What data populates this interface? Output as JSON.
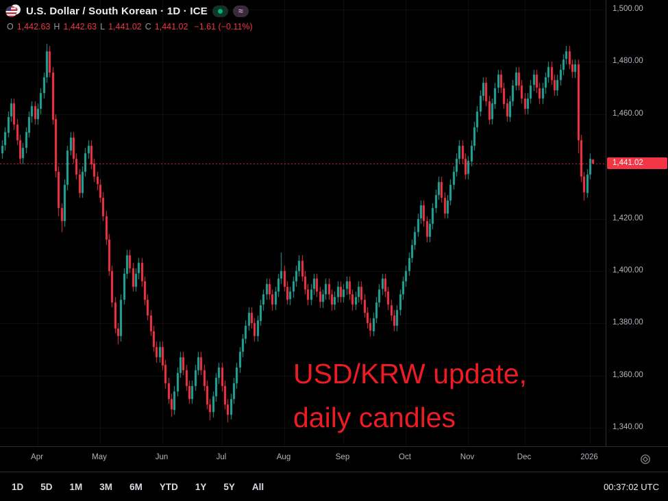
{
  "header": {
    "title": "U.S. Dollar / South Korean · 1D · ICE",
    "ohlc": {
      "o_label": "O",
      "o": "1,442.63",
      "h_label": "H",
      "h": "1,442.63",
      "l_label": "L",
      "l": "1,441.02",
      "c_label": "C",
      "c": "1,441.02",
      "change": "−1.61 (−0.11%)"
    }
  },
  "annotation": {
    "line1": "USD/KRW update,",
    "line2": "daily candles"
  },
  "toolbar": {
    "ranges": [
      "1D",
      "5D",
      "1M",
      "3M",
      "6M",
      "YTD",
      "1Y",
      "5Y",
      "All"
    ],
    "clock": "00:37:02 UTC"
  },
  "chart_data": {
    "type": "candlestick",
    "symbol": "USD/KRW",
    "timeframe": "1D",
    "exchange": "ICE",
    "current_price": 1441.02,
    "current_price_label": "1,441.02",
    "colors": {
      "up": "#26a69a",
      "down": "#f23645",
      "current_line": "#f23645",
      "grid": "rgba(134,137,147,0.12)"
    },
    "price_axis": {
      "min": 1340,
      "max": 1500,
      "tick_step": 20,
      "ticks": [
        {
          "value": 1500,
          "label": "1,500.00"
        },
        {
          "value": 1480,
          "label": "1,480.00"
        },
        {
          "value": 1460,
          "label": "1,460.00"
        },
        {
          "value": 1420,
          "label": "1,420.00"
        },
        {
          "value": 1400,
          "label": "1,400.00"
        },
        {
          "value": 1380,
          "label": "1,380.00"
        },
        {
          "value": 1360,
          "label": "1,360.00"
        },
        {
          "value": 1340,
          "label": "1,340.00"
        }
      ]
    },
    "x_ticks": [
      {
        "label": "Apr",
        "index": 12
      },
      {
        "label": "May",
        "index": 33
      },
      {
        "label": "Jun",
        "index": 54
      },
      {
        "label": "Jul",
        "index": 74
      },
      {
        "label": "Aug",
        "index": 95
      },
      {
        "label": "Sep",
        "index": 115
      },
      {
        "label": "Oct",
        "index": 136
      },
      {
        "label": "Nov",
        "index": 157
      },
      {
        "label": "Dec",
        "index": 176
      },
      {
        "label": "2026",
        "index": 198
      }
    ],
    "candles": [
      [
        1445,
        1450,
        1443,
        1448
      ],
      [
        1448,
        1455,
        1446,
        1453
      ],
      [
        1453,
        1461,
        1451,
        1459
      ],
      [
        1459,
        1466,
        1457,
        1464
      ],
      [
        1464,
        1466,
        1454,
        1456
      ],
      [
        1456,
        1458,
        1448,
        1450
      ],
      [
        1450,
        1452,
        1441,
        1443
      ],
      [
        1443,
        1449,
        1441,
        1447
      ],
      [
        1447,
        1455,
        1445,
        1453
      ],
      [
        1453,
        1461,
        1451,
        1459
      ],
      [
        1459,
        1465,
        1457,
        1463
      ],
      [
        1463,
        1465,
        1456,
        1458
      ],
      [
        1458,
        1464,
        1456,
        1462
      ],
      [
        1462,
        1470,
        1460,
        1468
      ],
      [
        1468,
        1476,
        1466,
        1474
      ],
      [
        1474,
        1487,
        1472,
        1484
      ],
      [
        1484,
        1486,
        1474,
        1476
      ],
      [
        1476,
        1478,
        1456,
        1458
      ],
      [
        1458,
        1460,
        1436,
        1438
      ],
      [
        1438,
        1440,
        1421,
        1424
      ],
      [
        1424,
        1426,
        1415,
        1419
      ],
      [
        1419,
        1435,
        1417,
        1433
      ],
      [
        1433,
        1448,
        1431,
        1446
      ],
      [
        1446,
        1453,
        1444,
        1451
      ],
      [
        1451,
        1453,
        1441,
        1443
      ],
      [
        1443,
        1445,
        1435,
        1437
      ],
      [
        1437,
        1439,
        1428,
        1430
      ],
      [
        1430,
        1440,
        1428,
        1438
      ],
      [
        1438,
        1447,
        1436,
        1445
      ],
      [
        1445,
        1450,
        1443,
        1448
      ],
      [
        1448,
        1450,
        1439,
        1441
      ],
      [
        1441,
        1443,
        1434,
        1436
      ],
      [
        1436,
        1438,
        1431,
        1433
      ],
      [
        1433,
        1435,
        1426,
        1428
      ],
      [
        1428,
        1430,
        1419,
        1421
      ],
      [
        1421,
        1423,
        1410,
        1412
      ],
      [
        1412,
        1414,
        1398,
        1400
      ],
      [
        1400,
        1402,
        1386,
        1388
      ],
      [
        1388,
        1390,
        1376,
        1378
      ],
      [
        1378,
        1380,
        1372,
        1375
      ],
      [
        1375,
        1391,
        1373,
        1389
      ],
      [
        1389,
        1401,
        1387,
        1399
      ],
      [
        1399,
        1408,
        1397,
        1406
      ],
      [
        1406,
        1408,
        1399,
        1401
      ],
      [
        1401,
        1403,
        1392,
        1394
      ],
      [
        1394,
        1401,
        1392,
        1399
      ],
      [
        1399,
        1405,
        1397,
        1403
      ],
      [
        1403,
        1405,
        1394,
        1396
      ],
      [
        1396,
        1398,
        1387,
        1389
      ],
      [
        1389,
        1391,
        1381,
        1383
      ],
      [
        1383,
        1385,
        1375,
        1377
      ],
      [
        1377,
        1379,
        1369,
        1371
      ],
      [
        1371,
        1373,
        1365,
        1367
      ],
      [
        1367,
        1373,
        1365,
        1371
      ],
      [
        1371,
        1373,
        1362,
        1364
      ],
      [
        1364,
        1366,
        1355,
        1357
      ],
      [
        1357,
        1359,
        1349,
        1351
      ],
      [
        1351,
        1353,
        1344,
        1347
      ],
      [
        1347,
        1356,
        1345,
        1354
      ],
      [
        1354,
        1363,
        1352,
        1361
      ],
      [
        1361,
        1369,
        1359,
        1367
      ],
      [
        1367,
        1369,
        1360,
        1362
      ],
      [
        1362,
        1364,
        1354,
        1356
      ],
      [
        1356,
        1358,
        1349,
        1351
      ],
      [
        1351,
        1358,
        1349,
        1356
      ],
      [
        1356,
        1364,
        1354,
        1362
      ],
      [
        1362,
        1369,
        1360,
        1367
      ],
      [
        1367,
        1369,
        1360,
        1362
      ],
      [
        1362,
        1364,
        1354,
        1356
      ],
      [
        1356,
        1358,
        1347,
        1349
      ],
      [
        1349,
        1351,
        1343,
        1346
      ],
      [
        1346,
        1354,
        1344,
        1352
      ],
      [
        1352,
        1361,
        1350,
        1359
      ],
      [
        1359,
        1365,
        1357,
        1363
      ],
      [
        1363,
        1365,
        1354,
        1356
      ],
      [
        1356,
        1358,
        1347,
        1349
      ],
      [
        1349,
        1351,
        1342,
        1345
      ],
      [
        1345,
        1353,
        1343,
        1351
      ],
      [
        1351,
        1359,
        1349,
        1357
      ],
      [
        1357,
        1365,
        1355,
        1363
      ],
      [
        1363,
        1371,
        1361,
        1369
      ],
      [
        1369,
        1376,
        1367,
        1374
      ],
      [
        1374,
        1381,
        1372,
        1379
      ],
      [
        1379,
        1386,
        1377,
        1384
      ],
      [
        1384,
        1386,
        1378,
        1380
      ],
      [
        1380,
        1382,
        1373,
        1375
      ],
      [
        1375,
        1383,
        1373,
        1381
      ],
      [
        1381,
        1389,
        1379,
        1387
      ],
      [
        1387,
        1393,
        1385,
        1391
      ],
      [
        1391,
        1397,
        1389,
        1395
      ],
      [
        1395,
        1397,
        1389,
        1391
      ],
      [
        1391,
        1393,
        1385,
        1387
      ],
      [
        1387,
        1394,
        1385,
        1392
      ],
      [
        1392,
        1399,
        1390,
        1397
      ],
      [
        1397,
        1407,
        1395,
        1400
      ],
      [
        1400,
        1402,
        1392,
        1394
      ],
      [
        1394,
        1396,
        1387,
        1389
      ],
      [
        1389,
        1394,
        1387,
        1392
      ],
      [
        1392,
        1398,
        1390,
        1396
      ],
      [
        1396,
        1402,
        1394,
        1400
      ],
      [
        1400,
        1406,
        1398,
        1404
      ],
      [
        1404,
        1406,
        1396,
        1398
      ],
      [
        1398,
        1400,
        1391,
        1393
      ],
      [
        1393,
        1395,
        1387,
        1389
      ],
      [
        1389,
        1395,
        1387,
        1393
      ],
      [
        1393,
        1399,
        1391,
        1397
      ],
      [
        1397,
        1399,
        1390,
        1392
      ],
      [
        1392,
        1394,
        1386,
        1388
      ],
      [
        1388,
        1393,
        1386,
        1391
      ],
      [
        1391,
        1397,
        1389,
        1395
      ],
      [
        1395,
        1397,
        1389,
        1391
      ],
      [
        1391,
        1393,
        1385,
        1387
      ],
      [
        1387,
        1392,
        1385,
        1390
      ],
      [
        1390,
        1396,
        1388,
        1394
      ],
      [
        1394,
        1396,
        1388,
        1390
      ],
      [
        1390,
        1395,
        1388,
        1393
      ],
      [
        1393,
        1398,
        1391,
        1396
      ],
      [
        1396,
        1398,
        1389,
        1391
      ],
      [
        1391,
        1393,
        1385,
        1387
      ],
      [
        1387,
        1392,
        1385,
        1390
      ],
      [
        1390,
        1396,
        1388,
        1394
      ],
      [
        1394,
        1396,
        1387,
        1389
      ],
      [
        1389,
        1391,
        1382,
        1384
      ],
      [
        1384,
        1386,
        1378,
        1380
      ],
      [
        1380,
        1382,
        1375,
        1377
      ],
      [
        1377,
        1384,
        1375,
        1382
      ],
      [
        1382,
        1390,
        1380,
        1388
      ],
      [
        1388,
        1395,
        1386,
        1393
      ],
      [
        1393,
        1399,
        1391,
        1397
      ],
      [
        1397,
        1399,
        1390,
        1392
      ],
      [
        1392,
        1394,
        1385,
        1387
      ],
      [
        1387,
        1389,
        1381,
        1383
      ],
      [
        1383,
        1385,
        1377,
        1379
      ],
      [
        1379,
        1387,
        1377,
        1385
      ],
      [
        1385,
        1393,
        1383,
        1391
      ],
      [
        1391,
        1398,
        1389,
        1396
      ],
      [
        1396,
        1402,
        1394,
        1400
      ],
      [
        1400,
        1407,
        1398,
        1405
      ],
      [
        1405,
        1412,
        1403,
        1410
      ],
      [
        1410,
        1417,
        1408,
        1415
      ],
      [
        1415,
        1422,
        1413,
        1420
      ],
      [
        1420,
        1427,
        1418,
        1425
      ],
      [
        1425,
        1427,
        1417,
        1419
      ],
      [
        1419,
        1421,
        1411,
        1413
      ],
      [
        1413,
        1420,
        1411,
        1418
      ],
      [
        1418,
        1426,
        1416,
        1424
      ],
      [
        1424,
        1431,
        1422,
        1429
      ],
      [
        1429,
        1436,
        1427,
        1434
      ],
      [
        1434,
        1436,
        1426,
        1428
      ],
      [
        1428,
        1430,
        1420,
        1422
      ],
      [
        1422,
        1429,
        1420,
        1427
      ],
      [
        1427,
        1435,
        1425,
        1433
      ],
      [
        1433,
        1440,
        1431,
        1438
      ],
      [
        1438,
        1445,
        1436,
        1443
      ],
      [
        1443,
        1450,
        1441,
        1448
      ],
      [
        1448,
        1450,
        1441,
        1443
      ],
      [
        1443,
        1445,
        1435,
        1437
      ],
      [
        1437,
        1444,
        1435,
        1442
      ],
      [
        1442,
        1450,
        1440,
        1448
      ],
      [
        1448,
        1457,
        1446,
        1455
      ],
      [
        1455,
        1463,
        1453,
        1461
      ],
      [
        1461,
        1469,
        1459,
        1467
      ],
      [
        1467,
        1474,
        1465,
        1472
      ],
      [
        1472,
        1474,
        1463,
        1465
      ],
      [
        1465,
        1467,
        1456,
        1458
      ],
      [
        1458,
        1466,
        1456,
        1464
      ],
      [
        1464,
        1472,
        1462,
        1470
      ],
      [
        1470,
        1477,
        1468,
        1475
      ],
      [
        1475,
        1477,
        1468,
        1470
      ],
      [
        1470,
        1472,
        1462,
        1464
      ],
      [
        1464,
        1466,
        1457,
        1459
      ],
      [
        1459,
        1467,
        1457,
        1465
      ],
      [
        1465,
        1473,
        1463,
        1471
      ],
      [
        1471,
        1478,
        1469,
        1476
      ],
      [
        1476,
        1478,
        1469,
        1471
      ],
      [
        1471,
        1473,
        1464,
        1466
      ],
      [
        1466,
        1468,
        1460,
        1462
      ],
      [
        1462,
        1468,
        1460,
        1466
      ],
      [
        1466,
        1473,
        1464,
        1471
      ],
      [
        1471,
        1477,
        1469,
        1475
      ],
      [
        1475,
        1477,
        1468,
        1470
      ],
      [
        1470,
        1472,
        1464,
        1466
      ],
      [
        1466,
        1472,
        1464,
        1470
      ],
      [
        1470,
        1476,
        1468,
        1474
      ],
      [
        1474,
        1480,
        1472,
        1478
      ],
      [
        1478,
        1480,
        1471,
        1473
      ],
      [
        1473,
        1475,
        1467,
        1469
      ],
      [
        1469,
        1475,
        1467,
        1473
      ],
      [
        1473,
        1479,
        1471,
        1477
      ],
      [
        1477,
        1483,
        1475,
        1481
      ],
      [
        1481,
        1486,
        1479,
        1484
      ],
      [
        1484,
        1486,
        1477,
        1479
      ],
      [
        1479,
        1481,
        1474,
        1476
      ],
      [
        1476,
        1481,
        1474,
        1479
      ],
      [
        1479,
        1481,
        1445,
        1450
      ],
      [
        1450,
        1452,
        1434,
        1436
      ],
      [
        1436,
        1438,
        1427,
        1430
      ],
      [
        1430,
        1439,
        1428,
        1437
      ],
      [
        1437,
        1445,
        1435,
        1443
      ],
      [
        1442.63,
        1442.63,
        1441.02,
        1441.02
      ]
    ]
  }
}
